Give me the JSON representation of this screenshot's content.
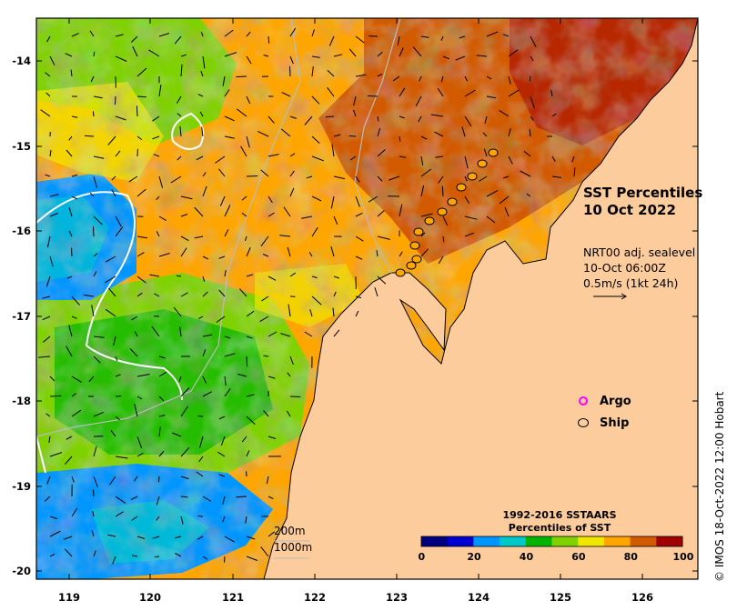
{
  "title": {
    "line1": "SST Percentiles",
    "line2": "10 Oct 2022"
  },
  "current_info": {
    "line1": "NRT00 adj. sealevel",
    "line2": "10-Oct 06:00Z",
    "line3": "0.5m/s (1kt 24h)"
  },
  "legend": {
    "argo_label": "Argo",
    "argo_color": "#ff00ff",
    "ship_label": "Ship"
  },
  "isobaths": {
    "label_200": "200m",
    "label_1000": "1000m"
  },
  "colorbar": {
    "title_line1": "1992-2016 SSTAARS",
    "title_line2": "Percentiles of SST",
    "colors": [
      "#00007f",
      "#0000d0",
      "#0096ff",
      "#00c8c8",
      "#00b400",
      "#7fd200",
      "#f0e600",
      "#ffa500",
      "#d25a00",
      "#a00000"
    ],
    "ticks": [
      "0",
      "20",
      "40",
      "60",
      "80",
      "100"
    ]
  },
  "credit": "© IMOS 18-Oct-2022 12:00 Hobart",
  "axes": {
    "lon_ticks": [
      "119",
      "120",
      "121",
      "122",
      "123",
      "124",
      "125",
      "126"
    ],
    "lat_ticks": [
      "-14",
      "-15",
      "-16",
      "-17",
      "-18",
      "-19",
      "-20"
    ]
  },
  "colors": {
    "land": "#fdcc9c",
    "frame": "#000000"
  }
}
